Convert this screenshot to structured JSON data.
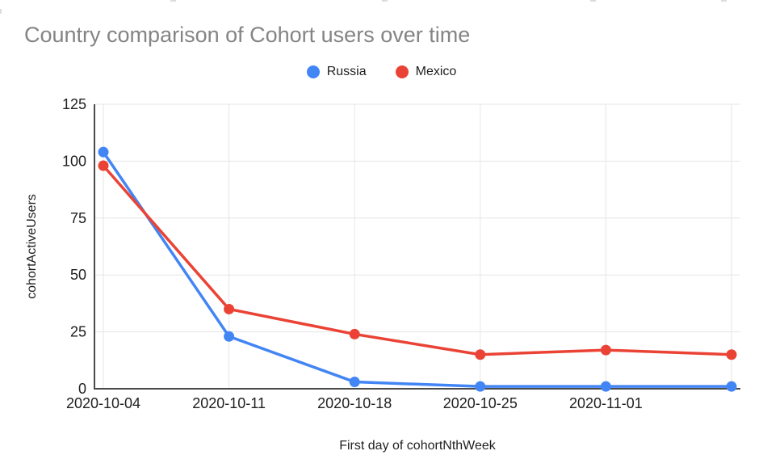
{
  "chart_data": {
    "type": "line",
    "title": "Country comparison of Cohort users over time",
    "xlabel": "First day of cohortNthWeek",
    "ylabel": "cohortActiveUsers",
    "x_tick_labels": [
      "2020-10-04",
      "2020-10-11",
      "2020-10-18",
      "2020-10-25",
      "2020-11-01",
      ""
    ],
    "series": [
      {
        "name": "Russia",
        "color": "#4285F4",
        "values": [
          104,
          23,
          3,
          1,
          1,
          1
        ]
      },
      {
        "name": "Mexico",
        "color": "#EA4335",
        "values": [
          98,
          35,
          24,
          15,
          17,
          15
        ]
      }
    ],
    "ylim": [
      0,
      125
    ],
    "yticks": [
      0,
      25,
      50,
      75,
      100,
      125
    ],
    "grid": true,
    "legend_position": "top"
  },
  "colors": {
    "title_text": "#848484",
    "axis_text": "#1f1f1f",
    "gridline": "#e6e6e6",
    "axis_line": "#4a4a4a",
    "background": "#ffffff"
  }
}
